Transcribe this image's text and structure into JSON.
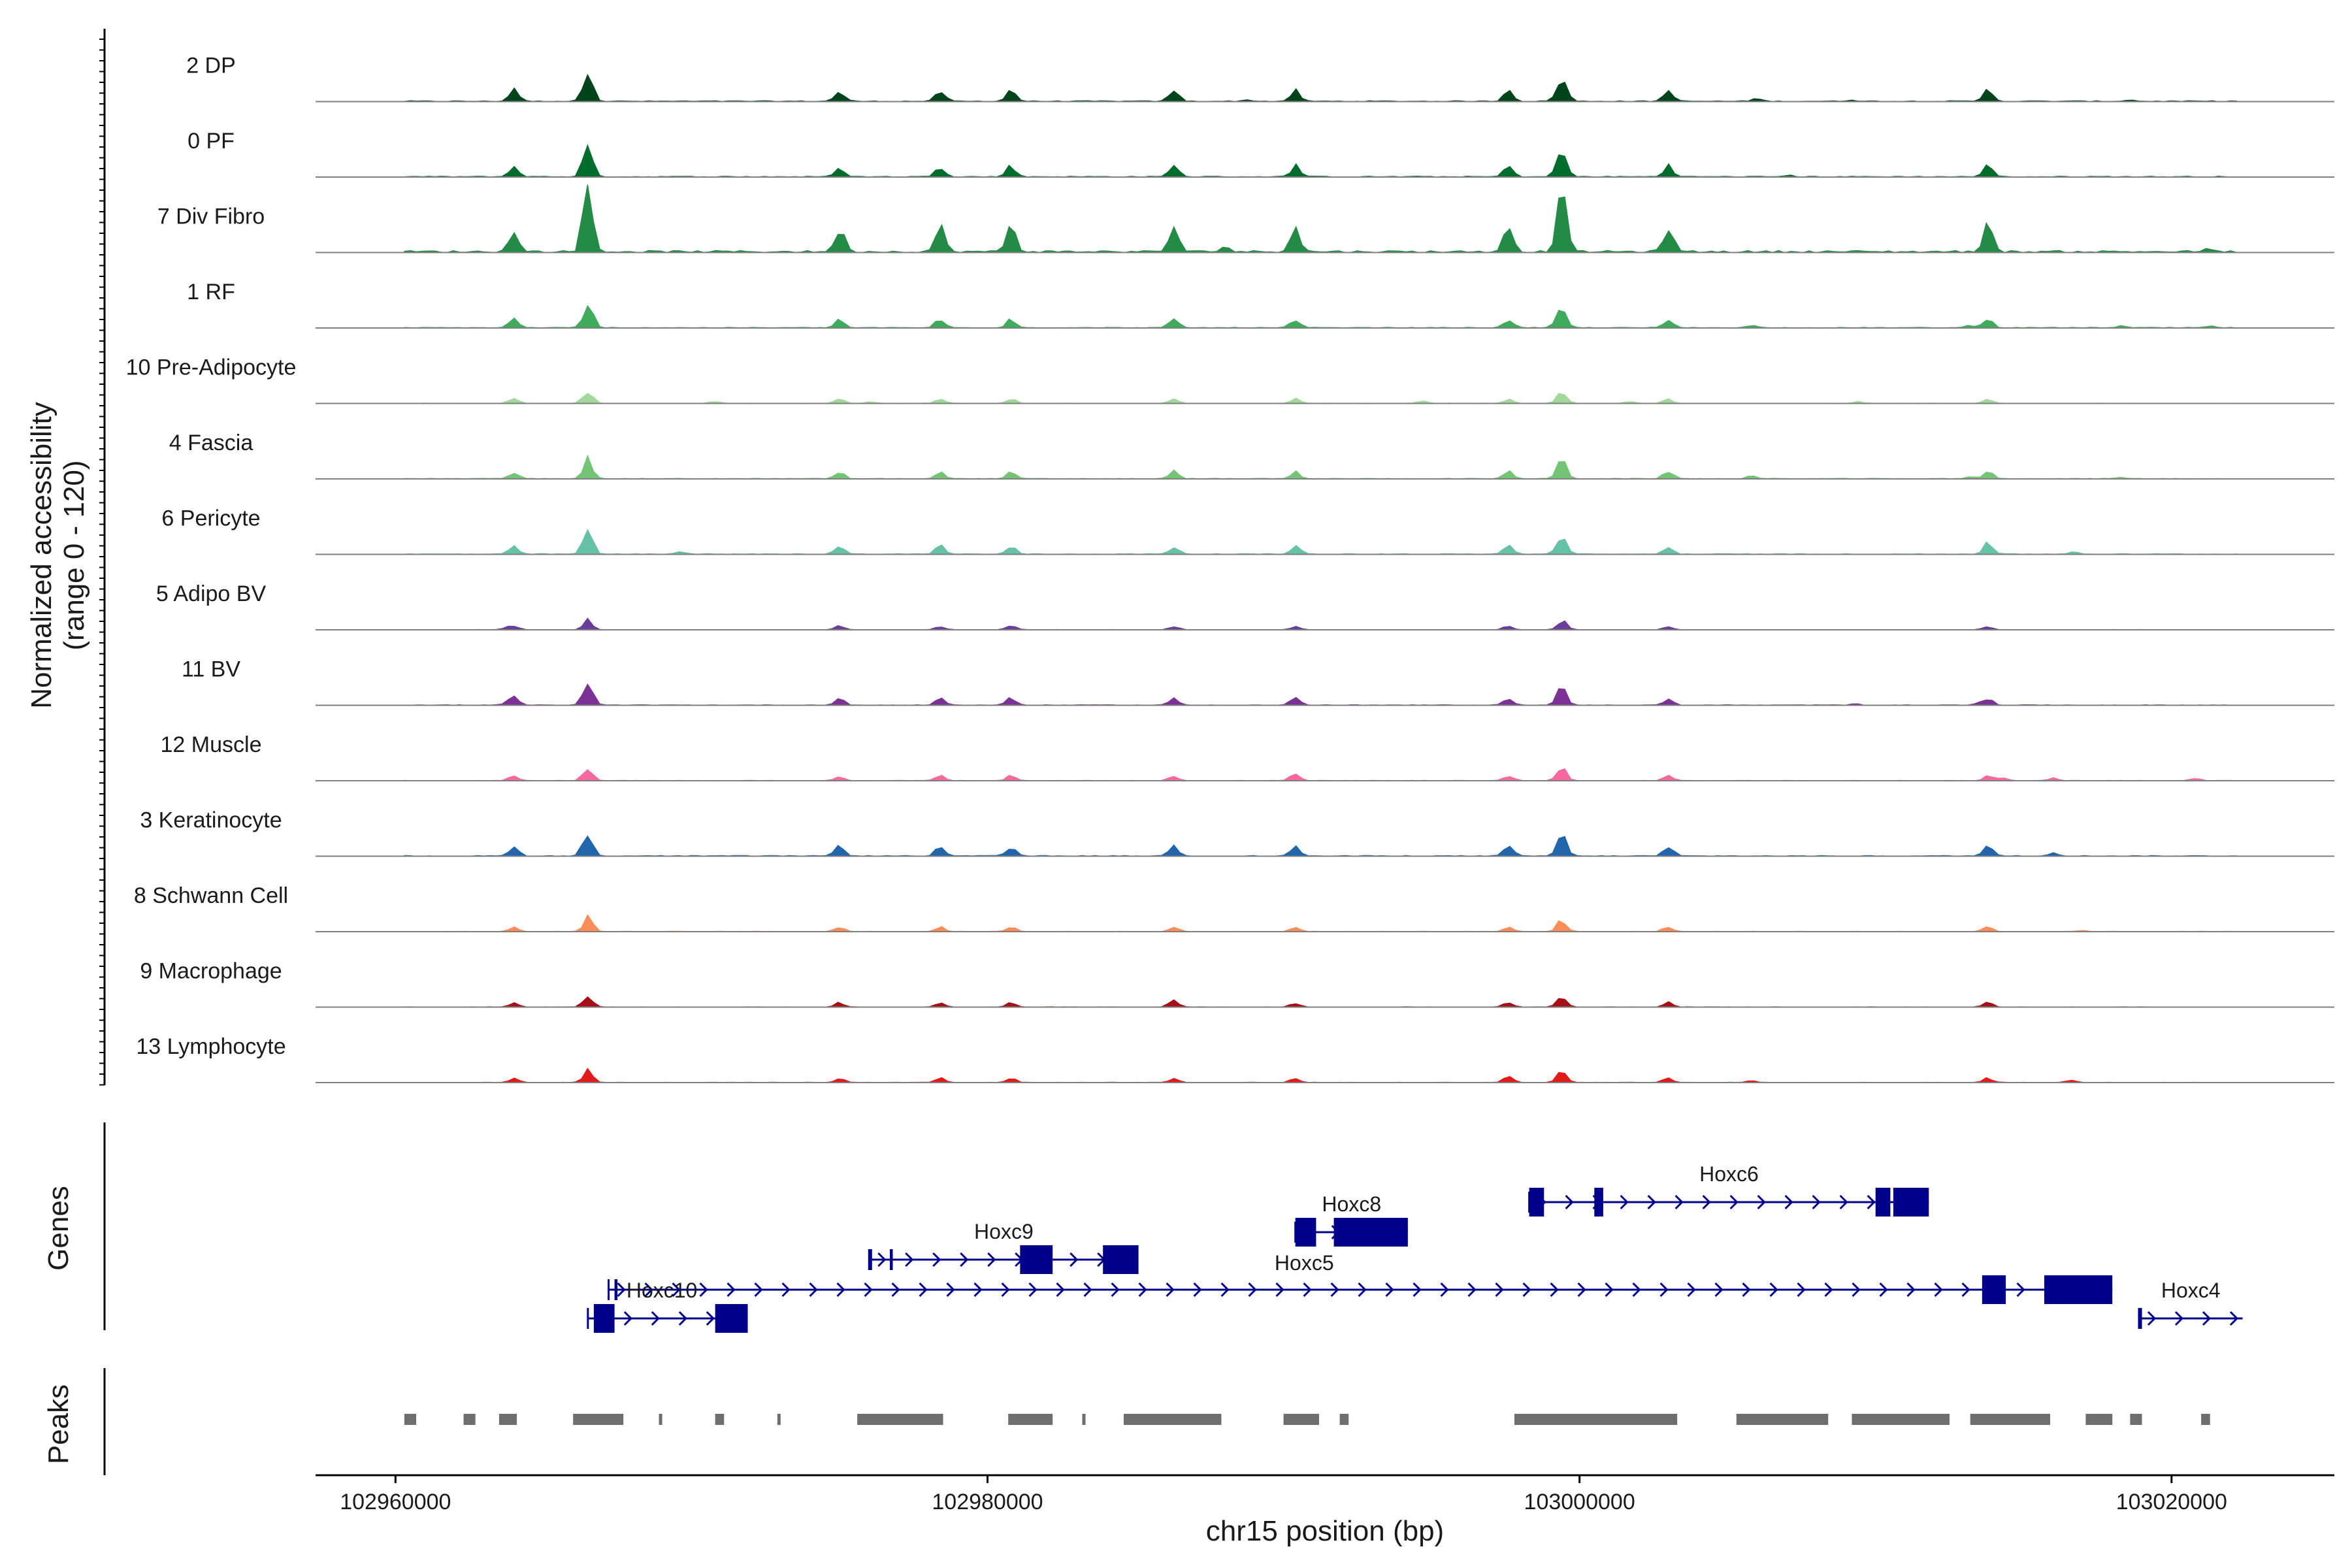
{
  "chart_data": {
    "type": "area",
    "title": "",
    "xlabel": "chr15 position (bp)",
    "ylabel": "Normalized accessibility",
    "ylabel_sub": "(range 0 - 120)",
    "yrange": [
      0,
      120
    ],
    "xlim": [
      102957300,
      103025500
    ],
    "xticks": [
      102960000,
      102980000,
      103000000,
      103020000
    ],
    "xtick_labels": [
      "102960000",
      "102980000",
      "103000000",
      "103020000"
    ],
    "genes_label": "Genes",
    "peaks_label": "Peaks",
    "peak_centers": [
      102964000,
      102966500,
      102975000,
      102978400,
      102980800,
      102986300,
      102990400,
      102997600,
      102999400,
      103003000,
      103013800
    ],
    "tracks": [
      {
        "name": "2 DP",
        "color": "#00441b",
        "scale": 0.45,
        "extra": [
          [
            102988800,
            0.12
          ],
          [
            103006000,
            0.25
          ],
          [
            103009200,
            0.12
          ],
          [
            103018600,
            0.12
          ]
        ]
      },
      {
        "name": "0 PF",
        "color": "#006d2c",
        "scale": 0.45,
        "extra": [
          [
            103007000,
            0.15
          ]
        ]
      },
      {
        "name": "7 Div Fibro",
        "color": "#238b45",
        "scale": 1.0,
        "extra": [
          [
            102988000,
            0.25
          ],
          [
            103013800,
            0.2
          ],
          [
            103021200,
            0.1
          ]
        ]
      },
      {
        "name": "1 RF",
        "color": "#41ab5d",
        "scale": 0.35,
        "extra": [
          [
            103005800,
            0.3
          ],
          [
            103013200,
            0.3
          ],
          [
            103018300,
            0.2
          ],
          [
            103021300,
            0.2
          ]
        ]
      },
      {
        "name": "10 Pre-Adipocyte",
        "color": "#a1d99b",
        "scale": 0.18,
        "extra": [
          [
            102970800,
            0.4
          ],
          [
            102976000,
            0.3
          ],
          [
            102994700,
            0.5
          ],
          [
            103001700,
            0.4
          ],
          [
            103009400,
            0.4
          ]
        ]
      },
      {
        "name": "4 Fascia",
        "color": "#74c476",
        "scale": 0.3,
        "extra": [
          [
            103005800,
            0.35
          ],
          [
            103013200,
            0.3
          ],
          [
            103018300,
            0.2
          ]
        ]
      },
      {
        "name": "6 Pericyte",
        "color": "#66c2a4",
        "scale": 0.35,
        "extra": [
          [
            102969600,
            0.3
          ],
          [
            103013800,
            0.3
          ],
          [
            103016700,
            0.25
          ]
        ]
      },
      {
        "name": "5 Adipo BV",
        "color": "#6a3d9a",
        "scale": 0.15,
        "extra": [
          [
            102963700,
            0.4
          ],
          [
            102980800,
            0.3
          ]
        ]
      },
      {
        "name": "11 BV",
        "color": "#7b3294",
        "scale": 0.3,
        "extra": [
          [
            102963800,
            0.3
          ],
          [
            103009300,
            0.2
          ],
          [
            103013500,
            0.2
          ]
        ]
      },
      {
        "name": "12 Muscle",
        "color": "#f768a1",
        "scale": 0.2,
        "extra": [
          [
            102990400,
            0.5
          ],
          [
            103014300,
            0.6
          ],
          [
            103016000,
            0.5
          ],
          [
            103020800,
            0.6
          ]
        ]
      },
      {
        "name": "3 Keratinocyte",
        "color": "#2166ac",
        "scale": 0.38,
        "extra": [
          [
            103013800,
            0.3
          ],
          [
            103016000,
            0.35
          ]
        ]
      },
      {
        "name": "8 Schwann Cell",
        "color": "#fc8d59",
        "scale": 0.2,
        "extra": [
          [
            103013800,
            0.3
          ],
          [
            103017000,
            0.25
          ]
        ]
      },
      {
        "name": "9 Macrophage",
        "color": "#a50f15",
        "scale": 0.18,
        "extra": [
          [
            102986300,
            0.6
          ]
        ]
      },
      {
        "name": "13 Lymphocyte",
        "color": "#e31a1c",
        "scale": 0.18,
        "extra": [
          [
            102997600,
            0.5
          ],
          [
            103005800,
            0.4
          ],
          [
            103016600,
            0.5
          ]
        ]
      }
    ],
    "genes": [
      {
        "name": "Hoxc6",
        "start": 102998300,
        "end": 103011800,
        "row": 0,
        "exons": [
          [
            102998300,
            102998800
          ],
          [
            103000500,
            103000800
          ],
          [
            103010000,
            103010500
          ],
          [
            103010600,
            103011800
          ]
        ],
        "thick": [
          102998700,
          103011700
        ]
      },
      {
        "name": "Hoxc8",
        "start": 102990400,
        "end": 102994200,
        "row": 1,
        "exons": [
          [
            102990400,
            102991100
          ],
          [
            102991700,
            102994200
          ]
        ],
        "thick": [
          102990700,
          102994000
        ]
      },
      {
        "name": "Hoxc9",
        "start": 102976000,
        "end": 102985100,
        "row": 2,
        "exons": [
          [
            102976000,
            102976100
          ],
          [
            102976700,
            102976800
          ],
          [
            102981100,
            102982200
          ],
          [
            102983900,
            102985100
          ]
        ],
        "thick": [
          102981200,
          102985000
        ]
      },
      {
        "name": "Hoxc5",
        "start": 102967200,
        "end": 103018000,
        "row": 3,
        "exons": [
          [
            102967400,
            102967500
          ],
          [
            103013600,
            103014400
          ],
          [
            103015700,
            103018000
          ]
        ],
        "thick": [
          103013700,
          103017800
        ]
      },
      {
        "name": "Hoxc10",
        "start": 102966500,
        "end": 102971900,
        "row": 4,
        "exons": [
          [
            102966700,
            102967400
          ],
          [
            102970800,
            102971900
          ]
        ],
        "thick": [
          102966800,
          102971800
        ]
      },
      {
        "name": "Hoxc4",
        "start": 103018900,
        "end": 103022400,
        "row": 4,
        "exons": [
          [
            103018900,
            103019000
          ]
        ],
        "thick": [
          103018900,
          103019000
        ]
      }
    ],
    "peaks": [
      [
        102960300,
        102960700
      ],
      [
        102962300,
        102962700
      ],
      [
        102963500,
        102964100
      ],
      [
        102966000,
        102967700
      ],
      [
        102968900,
        102969000
      ],
      [
        102970800,
        102971100
      ],
      [
        102972900,
        102973000
      ],
      [
        102975600,
        102978500
      ],
      [
        102980700,
        102982200
      ],
      [
        102983200,
        102983300
      ],
      [
        102984600,
        102987900
      ],
      [
        102990000,
        102991200
      ],
      [
        102991900,
        102992200
      ],
      [
        102997800,
        103003300
      ],
      [
        103005300,
        103008400
      ],
      [
        103009200,
        103012500
      ],
      [
        103013200,
        103015900
      ],
      [
        103017100,
        103018000
      ],
      [
        103018600,
        103019000
      ],
      [
        103021000,
        103021300
      ]
    ]
  }
}
